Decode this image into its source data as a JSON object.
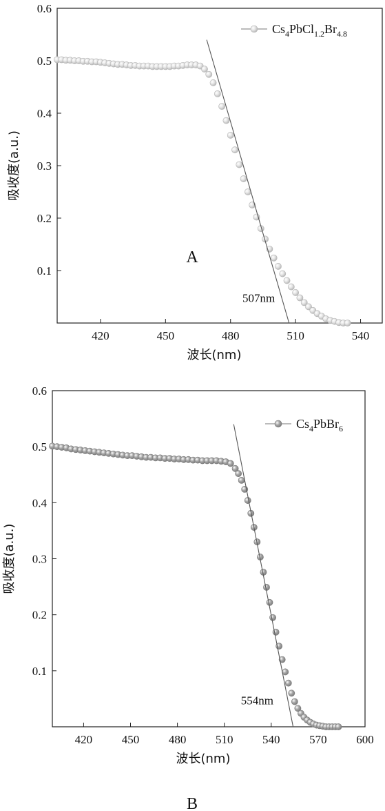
{
  "chart_data": [
    {
      "type": "scatter",
      "panel_label": "A",
      "xlabel": "波长(nm)",
      "ylabel": "吸收度(a.u.)",
      "xlim": [
        400,
        550
      ],
      "ylim": [
        0,
        0.6
      ],
      "xticks": [
        420,
        450,
        480,
        510,
        540
      ],
      "yticks": [
        0.1,
        0.2,
        0.3,
        0.4,
        0.5,
        0.6
      ],
      "legend": {
        "position": "top-right",
        "label_base": "Cs",
        "sub1": "4",
        "mid1": "PbCl",
        "sub2": "1.2",
        "mid2": "Br",
        "sub3": "4.8"
      },
      "series": [
        {
          "marker_color": "#b4b4b4",
          "x": [
            400,
            402,
            404,
            406,
            408,
            410,
            412,
            414,
            416,
            418,
            420,
            422,
            424,
            426,
            428,
            430,
            432,
            434,
            436,
            438,
            440,
            442,
            444,
            446,
            448,
            450,
            452,
            454,
            456,
            458,
            460,
            462,
            464,
            466,
            468,
            470,
            472,
            474,
            476,
            478,
            480,
            482,
            484,
            486,
            488,
            490,
            492,
            494,
            496,
            498,
            500,
            502,
            504,
            506,
            508,
            510,
            512,
            514,
            516,
            518,
            520,
            522,
            524,
            526,
            528,
            530,
            532,
            534
          ],
          "y": [
            0.502,
            0.502,
            0.501,
            0.501,
            0.5,
            0.5,
            0.499,
            0.499,
            0.498,
            0.498,
            0.497,
            0.496,
            0.495,
            0.494,
            0.493,
            0.493,
            0.492,
            0.491,
            0.491,
            0.49,
            0.49,
            0.49,
            0.489,
            0.489,
            0.489,
            0.489,
            0.489,
            0.49,
            0.49,
            0.491,
            0.492,
            0.492,
            0.492,
            0.49,
            0.484,
            0.474,
            0.458,
            0.437,
            0.413,
            0.386,
            0.358,
            0.33,
            0.302,
            0.275,
            0.25,
            0.225,
            0.202,
            0.18,
            0.16,
            0.141,
            0.124,
            0.108,
            0.094,
            0.081,
            0.069,
            0.058,
            0.048,
            0.039,
            0.031,
            0.024,
            0.018,
            0.013,
            0.008,
            0.005,
            0.003,
            0.001,
            0.0,
            0.0
          ]
        }
      ],
      "tangent": {
        "from": [
          469,
          0.54
        ],
        "to": [
          507,
          0.0
        ]
      },
      "annotation": "507nm",
      "annotation_at": [
        493,
        0.04
      ]
    },
    {
      "type": "scatter",
      "panel_label": "B",
      "xlabel": "波长(nm)",
      "ylabel": "吸收度(a.u.)",
      "xlim": [
        400,
        600
      ],
      "ylim": [
        0,
        0.6
      ],
      "xticks": [
        420,
        450,
        480,
        510,
        540,
        570,
        600
      ],
      "yticks": [
        0.1,
        0.2,
        0.3,
        0.4,
        0.5,
        0.6
      ],
      "legend": {
        "position": "top-right",
        "label_base": "Cs",
        "sub1": "4",
        "mid1": "PbBr",
        "sub2": "6",
        "mid2": "",
        "sub3": ""
      },
      "series": [
        {
          "marker_color": "#7a7a7a",
          "x": [
            400,
            403,
            406,
            409,
            412,
            415,
            418,
            421,
            424,
            427,
            430,
            433,
            436,
            439,
            442,
            445,
            448,
            451,
            454,
            457,
            460,
            463,
            466,
            469,
            472,
            475,
            478,
            481,
            484,
            487,
            490,
            493,
            496,
            499,
            502,
            505,
            508,
            511,
            514,
            517,
            519,
            521,
            523,
            525,
            527,
            529,
            531,
            533,
            535,
            537,
            539,
            541,
            543,
            545,
            547,
            549,
            551,
            553,
            555,
            557,
            559,
            561,
            563,
            565,
            567,
            569,
            571,
            573,
            575,
            577,
            579,
            581,
            583
          ],
          "y": [
            0.501,
            0.5,
            0.499,
            0.498,
            0.496,
            0.495,
            0.494,
            0.493,
            0.492,
            0.491,
            0.49,
            0.489,
            0.488,
            0.487,
            0.486,
            0.485,
            0.484,
            0.484,
            0.483,
            0.482,
            0.481,
            0.481,
            0.48,
            0.48,
            0.479,
            0.479,
            0.478,
            0.478,
            0.477,
            0.477,
            0.476,
            0.476,
            0.475,
            0.475,
            0.475,
            0.475,
            0.474,
            0.473,
            0.47,
            0.461,
            0.452,
            0.44,
            0.424,
            0.404,
            0.381,
            0.356,
            0.33,
            0.303,
            0.276,
            0.249,
            0.222,
            0.195,
            0.169,
            0.144,
            0.12,
            0.098,
            0.078,
            0.06,
            0.045,
            0.033,
            0.024,
            0.017,
            0.012,
            0.008,
            0.005,
            0.003,
            0.002,
            0.001,
            0.0,
            0.0,
            0.0,
            0.0,
            0.0
          ]
        }
      ],
      "tangent": {
        "from": [
          516,
          0.54
        ],
        "to": [
          554,
          0.0
        ]
      },
      "annotation": "554nm",
      "annotation_at": [
        531,
        0.04
      ]
    }
  ]
}
